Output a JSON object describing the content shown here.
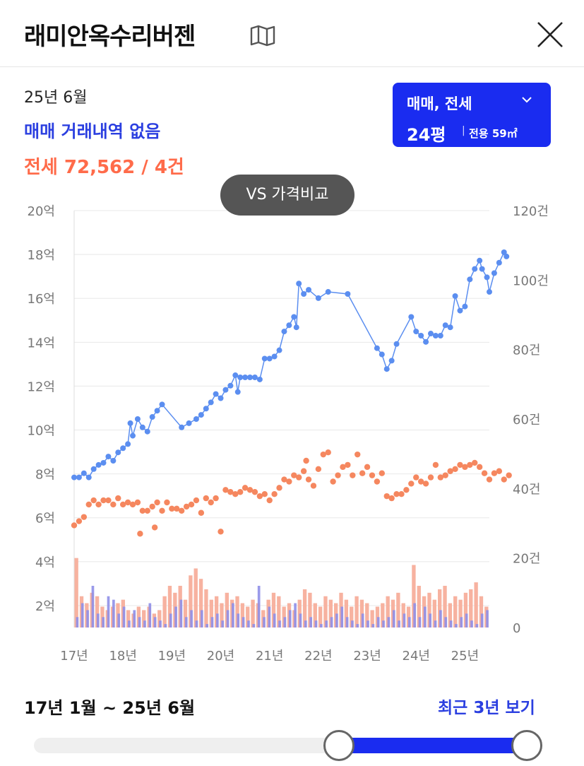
{
  "header": {
    "title": "래미안옥수리버젠",
    "map_icon": "map-icon",
    "close_icon": "close-icon"
  },
  "summary": {
    "date": "25년 6월",
    "sale_status": "매매 거래내역 없음",
    "jeonse_status": "전세 72,562 / 4건"
  },
  "filter": {
    "type_label": "매매, 전세",
    "size_label": "24평",
    "separator": "|",
    "area_label": "전용 59㎡"
  },
  "compare_button": {
    "label": "VS 가격비교"
  },
  "colors": {
    "sale": "#5b8ef0",
    "jeonse": "#f5875f",
    "sale_bar": "#8f8fe8",
    "jeonse_bar": "#f7b2a0",
    "accent": "#1a2cf0",
    "grid": "#e8e8e8"
  },
  "chart_data": {
    "type": "line",
    "left_axis": {
      "ticks": [
        "20억",
        "18억",
        "16억",
        "14억",
        "12억",
        "10억",
        "8억",
        "6억",
        "4억",
        "2억"
      ],
      "range": [
        0,
        20
      ],
      "unit": "억"
    },
    "right_axis": {
      "ticks": [
        "120건",
        "100건",
        "80건",
        "60건",
        "40건",
        "20건",
        "0"
      ],
      "range": [
        0,
        120
      ],
      "unit": "건"
    },
    "x_axis": {
      "ticks": [
        "17년",
        "18년",
        "19년",
        "20년",
        "21년",
        "22년",
        "23년",
        "24년",
        "25년"
      ],
      "range": [
        17.0,
        25.5
      ]
    },
    "grid": true,
    "series": [
      {
        "type": "line",
        "values_unit": "억",
        "points": [
          [
            17.0,
            7.2
          ],
          [
            17.1,
            7.2
          ],
          [
            17.2,
            7.4
          ],
          [
            17.3,
            7.2
          ],
          [
            17.4,
            7.6
          ],
          [
            17.5,
            7.8
          ],
          [
            17.6,
            7.9
          ],
          [
            17.7,
            8.2
          ],
          [
            17.8,
            8.0
          ],
          [
            17.9,
            8.4
          ],
          [
            18.0,
            8.6
          ],
          [
            18.1,
            8.8
          ],
          [
            18.15,
            9.8
          ],
          [
            18.2,
            9.2
          ],
          [
            18.3,
            10.0
          ],
          [
            18.4,
            9.6
          ],
          [
            18.5,
            9.4
          ],
          [
            18.6,
            10.1
          ],
          [
            18.7,
            10.4
          ],
          [
            18.8,
            10.7
          ],
          [
            19.2,
            9.6
          ],
          [
            19.35,
            9.8
          ],
          [
            19.5,
            10.0
          ],
          [
            19.6,
            10.2
          ],
          [
            19.7,
            10.5
          ],
          [
            19.8,
            10.8
          ],
          [
            19.9,
            11.2
          ],
          [
            20.0,
            11.0
          ],
          [
            20.1,
            11.4
          ],
          [
            20.2,
            11.6
          ],
          [
            20.3,
            12.1
          ],
          [
            20.35,
            11.3
          ],
          [
            20.4,
            12.0
          ],
          [
            20.5,
            12.0
          ],
          [
            20.6,
            12.0
          ],
          [
            20.7,
            12.0
          ],
          [
            20.8,
            11.9
          ],
          [
            20.9,
            12.9
          ],
          [
            21.0,
            12.9
          ],
          [
            21.1,
            13.0
          ],
          [
            21.2,
            13.3
          ],
          [
            21.3,
            14.2
          ],
          [
            21.4,
            14.5
          ],
          [
            21.5,
            14.9
          ],
          [
            21.55,
            14.4
          ],
          [
            21.6,
            16.5
          ],
          [
            21.7,
            16.0
          ],
          [
            21.8,
            16.2
          ],
          [
            22.0,
            15.8
          ],
          [
            22.2,
            16.1
          ],
          [
            22.6,
            16.0
          ],
          [
            23.2,
            13.4
          ],
          [
            23.3,
            13.1
          ],
          [
            23.4,
            12.4
          ],
          [
            23.5,
            12.8
          ],
          [
            23.6,
            13.6
          ],
          [
            23.9,
            14.9
          ],
          [
            24.0,
            14.2
          ],
          [
            24.1,
            14.0
          ],
          [
            24.2,
            13.7
          ],
          [
            24.3,
            14.1
          ],
          [
            24.4,
            14.0
          ],
          [
            24.5,
            14.0
          ],
          [
            24.6,
            14.5
          ],
          [
            24.7,
            14.4
          ],
          [
            24.8,
            15.9
          ],
          [
            24.9,
            15.2
          ],
          [
            25.0,
            15.4
          ],
          [
            25.1,
            16.7
          ],
          [
            25.2,
            17.2
          ],
          [
            25.3,
            17.6
          ],
          [
            25.35,
            17.2
          ],
          [
            25.45,
            16.8
          ],
          [
            25.5,
            16.1
          ],
          [
            25.6,
            17.0
          ],
          [
            25.7,
            17.5
          ],
          [
            25.8,
            18.0
          ],
          [
            25.85,
            17.8
          ]
        ]
      },
      {
        "type": "scatter",
        "values_unit": "억",
        "points": [
          [
            17.0,
            4.9
          ],
          [
            17.1,
            5.1
          ],
          [
            17.2,
            5.3
          ],
          [
            17.3,
            5.9
          ],
          [
            17.4,
            6.1
          ],
          [
            17.5,
            5.9
          ],
          [
            17.6,
            6.1
          ],
          [
            17.7,
            6.1
          ],
          [
            17.8,
            5.9
          ],
          [
            17.9,
            6.2
          ],
          [
            18.0,
            5.9
          ],
          [
            18.1,
            6.0
          ],
          [
            18.2,
            5.9
          ],
          [
            18.3,
            6.0
          ],
          [
            18.35,
            4.5
          ],
          [
            18.4,
            5.6
          ],
          [
            18.5,
            5.6
          ],
          [
            18.6,
            5.8
          ],
          [
            18.65,
            4.8
          ],
          [
            18.7,
            6.0
          ],
          [
            18.8,
            5.6
          ],
          [
            18.9,
            6.0
          ],
          [
            19.0,
            5.7
          ],
          [
            19.1,
            5.7
          ],
          [
            19.2,
            5.6
          ],
          [
            19.3,
            5.8
          ],
          [
            19.4,
            5.9
          ],
          [
            19.5,
            6.1
          ],
          [
            19.6,
            5.5
          ],
          [
            19.7,
            6.2
          ],
          [
            19.8,
            6.0
          ],
          [
            19.9,
            6.2
          ],
          [
            20.0,
            4.6
          ],
          [
            20.1,
            6.6
          ],
          [
            20.2,
            6.5
          ],
          [
            20.3,
            6.4
          ],
          [
            20.4,
            6.5
          ],
          [
            20.5,
            6.7
          ],
          [
            20.6,
            6.6
          ],
          [
            20.7,
            6.5
          ],
          [
            20.8,
            6.3
          ],
          [
            20.9,
            6.4
          ],
          [
            21.0,
            6.1
          ],
          [
            21.1,
            6.4
          ],
          [
            21.2,
            6.7
          ],
          [
            21.3,
            7.1
          ],
          [
            21.4,
            7.0
          ],
          [
            21.5,
            7.3
          ],
          [
            21.6,
            7.2
          ],
          [
            21.7,
            7.5
          ],
          [
            21.75,
            8.0
          ],
          [
            21.8,
            7.1
          ],
          [
            21.9,
            6.8
          ],
          [
            22.0,
            7.6
          ],
          [
            22.1,
            8.3
          ],
          [
            22.2,
            8.4
          ],
          [
            22.3,
            7.0
          ],
          [
            22.4,
            7.3
          ],
          [
            22.5,
            7.7
          ],
          [
            22.6,
            7.8
          ],
          [
            22.7,
            7.3
          ],
          [
            22.8,
            8.3
          ],
          [
            22.9,
            7.4
          ],
          [
            23.0,
            7.7
          ],
          [
            23.1,
            7.3
          ],
          [
            23.2,
            7.0
          ],
          [
            23.3,
            7.4
          ],
          [
            23.4,
            6.3
          ],
          [
            23.5,
            6.2
          ],
          [
            23.6,
            6.4
          ],
          [
            23.7,
            6.4
          ],
          [
            23.8,
            6.6
          ],
          [
            23.9,
            6.9
          ],
          [
            24.0,
            7.2
          ],
          [
            24.1,
            7.0
          ],
          [
            24.2,
            6.9
          ],
          [
            24.3,
            7.2
          ],
          [
            24.4,
            7.8
          ],
          [
            24.5,
            7.2
          ],
          [
            24.6,
            7.3
          ],
          [
            24.7,
            7.5
          ],
          [
            24.8,
            7.6
          ],
          [
            24.9,
            7.8
          ],
          [
            25.0,
            7.7
          ],
          [
            25.1,
            7.8
          ],
          [
            25.2,
            7.9
          ],
          [
            25.3,
            7.7
          ],
          [
            25.4,
            7.4
          ],
          [
            25.5,
            7.1
          ],
          [
            25.6,
            7.4
          ],
          [
            25.7,
            7.5
          ],
          [
            25.8,
            7.1
          ],
          [
            25.9,
            7.3
          ]
        ]
      }
    ],
    "bars": {
      "values_unit": "건",
      "sale_counts": [
        3,
        7,
        5,
        12,
        4,
        3,
        9,
        8,
        4,
        6,
        2,
        5,
        3,
        2,
        7,
        3,
        2,
        1,
        4,
        6,
        8,
        3,
        5,
        2,
        5,
        1,
        3,
        4,
        2,
        5,
        7,
        4,
        3,
        2,
        1,
        12,
        3,
        6,
        4,
        2,
        3,
        5,
        7,
        4,
        2,
        3,
        2,
        1,
        2,
        3,
        4,
        6,
        3,
        2,
        1,
        4,
        2,
        1,
        3,
        2,
        3,
        5,
        2,
        4,
        3,
        7,
        3,
        6,
        4,
        2,
        5,
        3,
        2,
        1,
        3,
        4,
        2,
        1,
        4,
        5
      ],
      "jeonse_counts": [
        20,
        9,
        7,
        10,
        9,
        6,
        5,
        6,
        7,
        8,
        5,
        4,
        6,
        5,
        6,
        4,
        5,
        9,
        12,
        10,
        12,
        8,
        15,
        17,
        14,
        11,
        8,
        9,
        7,
        10,
        8,
        9,
        7,
        6,
        8,
        7,
        5,
        8,
        10,
        9,
        6,
        7,
        5,
        8,
        11,
        10,
        7,
        6,
        9,
        8,
        7,
        10,
        8,
        6,
        9,
        8,
        7,
        5,
        6,
        7,
        9,
        8,
        10,
        7,
        6,
        18,
        12,
        9,
        10,
        8,
        11,
        12,
        7,
        9,
        8,
        10,
        11,
        13,
        9,
        6
      ]
    }
  },
  "period": {
    "range_text": "17년 1월 ~ 25년 6월",
    "recent_label": "최근 3년 보기"
  },
  "slider": {
    "start_fraction": 0.6,
    "end_fraction": 1.0
  }
}
